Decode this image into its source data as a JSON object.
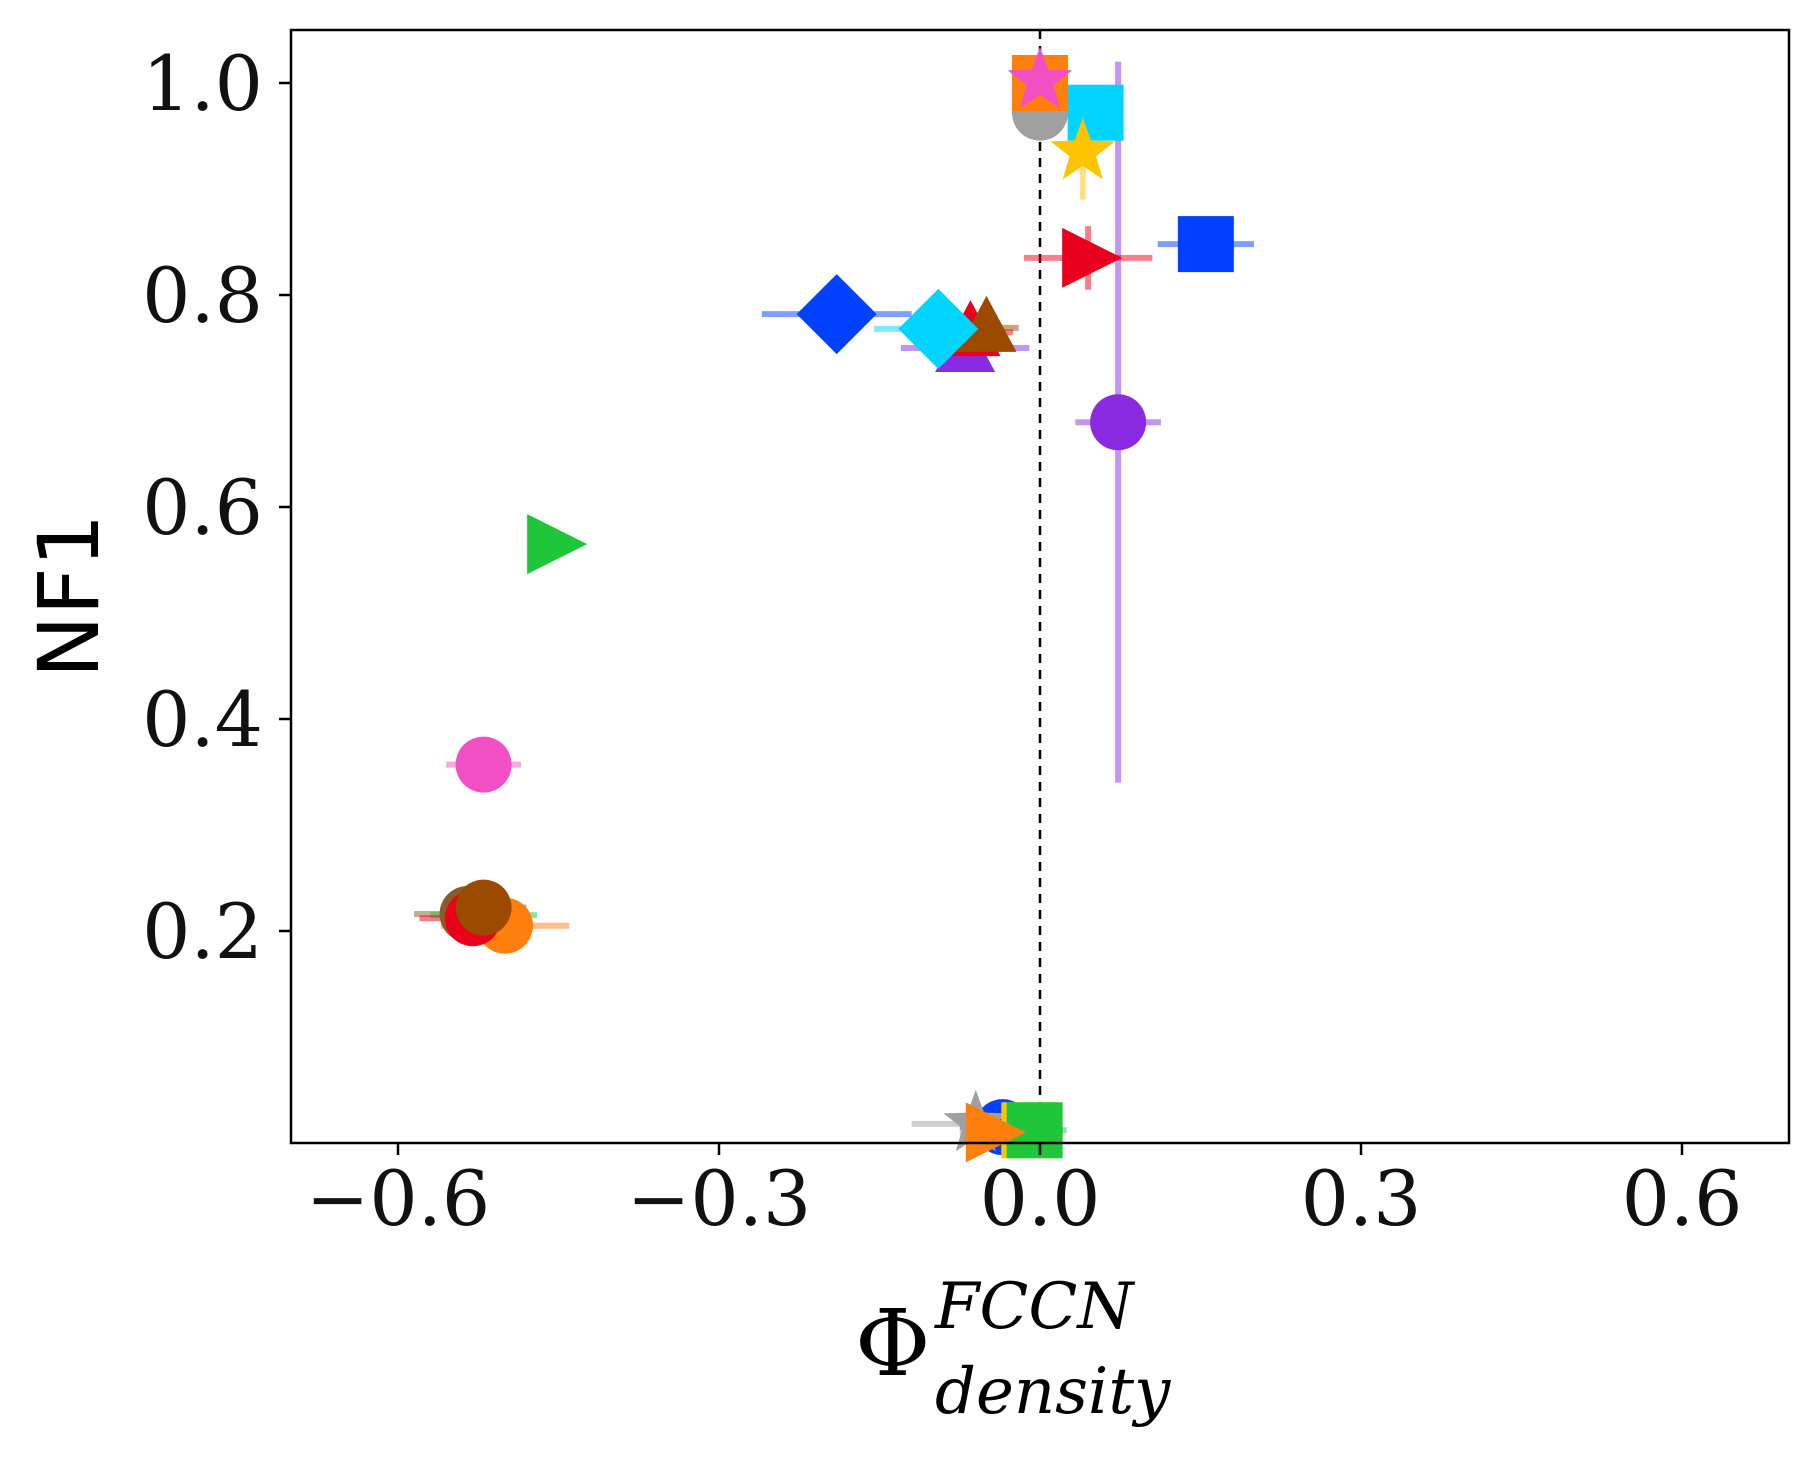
{
  "chart_data": {
    "type": "scatter",
    "title": "",
    "xlabel": {
      "base": "Φ",
      "superscript": "FCCN",
      "subscript": "density"
    },
    "ylabel": "NF1",
    "xlim": [
      -0.7,
      0.7
    ],
    "ylim": [
      0.0,
      1.05
    ],
    "xticks": [
      -0.6,
      -0.3,
      0.0,
      0.3,
      0.6
    ],
    "xtick_labels": [
      "−0.6",
      "−0.3",
      "0.0",
      "0.3",
      "0.6"
    ],
    "yticks": [
      0.2,
      0.4,
      0.6,
      0.8,
      1.0
    ],
    "ytick_labels": [
      "0.2",
      "0.4",
      "0.6",
      "0.8",
      "1.0"
    ],
    "reference_line": {
      "x": 0.0,
      "style": "dashed"
    },
    "grid": false,
    "points": [
      {
        "x": -0.535,
        "y": 0.216,
        "xerr": 0.05,
        "yerr": 0,
        "marker": "circle",
        "color": "#8b5a2b"
      },
      {
        "x": -0.52,
        "y": 0.215,
        "xerr": 0.05,
        "yerr": 0,
        "marker": "circle",
        "color": "#1fc63a"
      },
      {
        "x": -0.5,
        "y": 0.205,
        "xerr": 0.06,
        "yerr": 0,
        "marker": "circle",
        "color": "#ff7f0e"
      },
      {
        "x": -0.53,
        "y": 0.212,
        "xerr": 0.05,
        "yerr": 0,
        "marker": "circle",
        "color": "#e8001c"
      },
      {
        "x": -0.52,
        "y": 0.222,
        "xerr": 0.04,
        "yerr": 0,
        "marker": "circle",
        "color": "#9c4a00"
      },
      {
        "x": -0.52,
        "y": 0.357,
        "xerr": 0.035,
        "yerr": 0,
        "marker": "circle",
        "color": "#f24fc5"
      },
      {
        "x": -0.455,
        "y": 0.565,
        "xerr": 0.01,
        "yerr": 0,
        "marker": "triangle-right",
        "color": "#1fc63a"
      },
      {
        "x": -0.19,
        "y": 0.782,
        "xerr": 0.07,
        "yerr": 0.03,
        "marker": "diamond",
        "color": "#0040ff"
      },
      {
        "x": -0.07,
        "y": 0.75,
        "xerr": 0.06,
        "yerr": 0,
        "marker": "triangle-up",
        "color": "#8a2be2"
      },
      {
        "x": -0.065,
        "y": 0.765,
        "xerr": 0.04,
        "yerr": 0,
        "marker": "triangle-up",
        "color": "#e8001c"
      },
      {
        "x": -0.05,
        "y": 0.769,
        "xerr": 0.03,
        "yerr": 0,
        "marker": "triangle-up",
        "color": "#9c4a00"
      },
      {
        "x": -0.095,
        "y": 0.768,
        "xerr": 0.06,
        "yerr": 0,
        "marker": "diamond",
        "color": "#00d4ff"
      },
      {
        "x": 0.073,
        "y": 0.68,
        "xerr": 0.04,
        "yerr": 0.34,
        "marker": "circle",
        "color": "#8a2be2"
      },
      {
        "x": 0.045,
        "y": 0.835,
        "xerr": 0.06,
        "yerr": 0.03,
        "marker": "triangle-right",
        "color": "#e8001c"
      },
      {
        "x": 0.155,
        "y": 0.848,
        "xerr": 0.045,
        "yerr": 0,
        "marker": "square",
        "color": "#0040ff"
      },
      {
        "x": 0.0,
        "y": 0.972,
        "xerr": 0,
        "yerr": 0,
        "marker": "circle",
        "color": "#a0a0a0"
      },
      {
        "x": 0.052,
        "y": 0.972,
        "xerr": 0,
        "yerr": 0,
        "marker": "square",
        "color": "#00d4ff"
      },
      {
        "x": 0.04,
        "y": 0.935,
        "xerr": 0,
        "yerr": 0.045,
        "marker": "star",
        "color": "#ffc400"
      },
      {
        "x": 0.0,
        "y": 1.0,
        "xerr": 0,
        "yerr": 0,
        "marker": "square",
        "color": "#ff7f0e"
      },
      {
        "x": 0.0,
        "y": 1.002,
        "xerr": 0,
        "yerr": 0,
        "marker": "star",
        "color": "#f24fc5"
      },
      {
        "x": -0.035,
        "y": 0.015,
        "xerr": 0.04,
        "yerr": 0,
        "marker": "circle",
        "color": "#0040ff"
      },
      {
        "x": -0.06,
        "y": 0.018,
        "xerr": 0.06,
        "yerr": 0,
        "marker": "star",
        "color": "#a0a0a0"
      },
      {
        "x": -0.01,
        "y": 0.012,
        "xerr": 0.03,
        "yerr": 0,
        "marker": "square",
        "color": "#ffc400"
      },
      {
        "x": -0.005,
        "y": 0.012,
        "xerr": 0.03,
        "yerr": 0,
        "marker": "square",
        "color": "#1fc63a"
      },
      {
        "x": -0.045,
        "y": 0.01,
        "xerr": 0.03,
        "yerr": 0,
        "marker": "triangle-right",
        "color": "#ff7f0e"
      }
    ]
  }
}
